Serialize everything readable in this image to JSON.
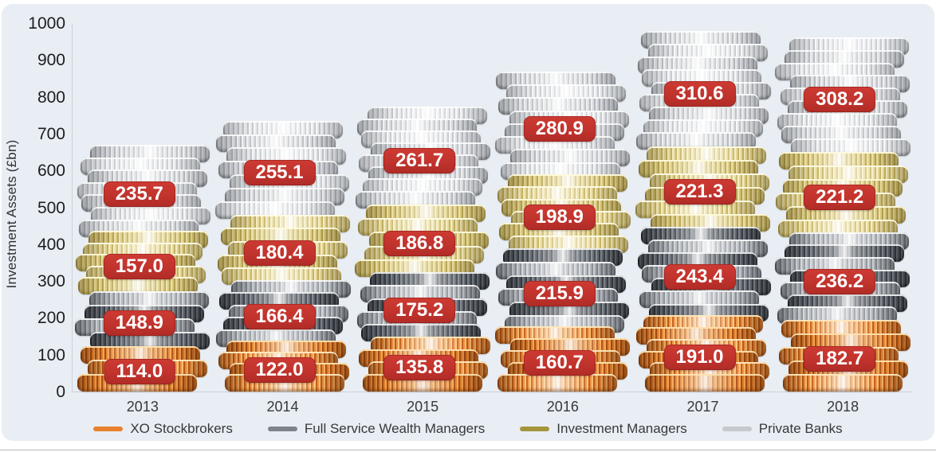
{
  "chart_data": {
    "type": "bar",
    "stacked": true,
    "title": "",
    "xlabel": "",
    "ylabel": "Investment Assets (£bn)",
    "ylim": [
      0,
      1000
    ],
    "ytick_step": 100,
    "grid": false,
    "legend_position": "bottom",
    "categories": [
      "2013",
      "2014",
      "2015",
      "2016",
      "2017",
      "2018"
    ],
    "series": [
      {
        "name": "XO Stockbrokers",
        "color": "#e8802e",
        "coin_style": "orange-coins",
        "values": [
          114.0,
          122.0,
          135.8,
          160.7,
          191.0,
          182.7
        ]
      },
      {
        "name": "Full Service Wealth Managers",
        "color": "#7e838a",
        "coin_style": "dark-silver-coins",
        "values": [
          148.9,
          166.4,
          175.2,
          215.9,
          243.4,
          236.2
        ]
      },
      {
        "name": "Investment Managers",
        "color": "#a4953d",
        "coin_style": "gold-coins",
        "values": [
          157.0,
          180.4,
          186.8,
          198.9,
          221.3,
          221.2
        ]
      },
      {
        "name": "Private Banks",
        "color": "#c6c9ce",
        "coin_style": "silver-coins",
        "values": [
          235.7,
          255.1,
          261.7,
          280.9,
          310.6,
          308.2
        ]
      }
    ],
    "value_label_style": {
      "background": "#c1332d",
      "text_color": "#ffffff",
      "decimals": 1
    },
    "panel_background": "#e9eef4",
    "page_background": "#ffffff"
  }
}
